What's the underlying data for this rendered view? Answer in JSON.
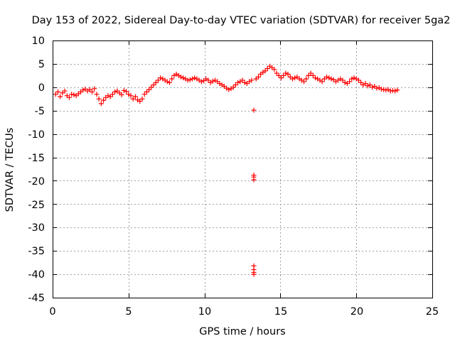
{
  "chart_data": {
    "type": "scatter",
    "title": "Day 153 of 2022, Sidereal Day-to-day VTEC variation (SDTVAR) for receiver 5ga2",
    "xlabel": "GPS time / hours",
    "ylabel": "SDTVAR / TECUs",
    "xlim": [
      0,
      25
    ],
    "ylim": [
      -45,
      10
    ],
    "xticks": [
      "0",
      "5",
      "10",
      "15",
      "20",
      "25"
    ],
    "yticks": [
      "10",
      "5",
      "0",
      "-5",
      "-10",
      "-15",
      "-20",
      "-25",
      "-30",
      "-35",
      "-40",
      "-45"
    ],
    "grid": true,
    "marker": "plus",
    "series": [
      {
        "name": "SDTVAR",
        "color": "#ff0000",
        "x": [
          0.2,
          0.35,
          0.5,
          0.65,
          0.8,
          0.95,
          1.1,
          1.25,
          1.4,
          1.55,
          1.7,
          1.85,
          2.0,
          2.15,
          2.3,
          2.45,
          2.6,
          2.75,
          2.9,
          3.05,
          3.2,
          3.35,
          3.5,
          3.65,
          3.8,
          3.95,
          4.1,
          4.25,
          4.4,
          4.55,
          4.7,
          4.85,
          5.0,
          5.15,
          5.3,
          5.45,
          5.6,
          5.75,
          5.9,
          6.05,
          6.2,
          6.35,
          6.5,
          6.65,
          6.8,
          6.95,
          7.1,
          7.25,
          7.4,
          7.55,
          7.7,
          7.85,
          8.0,
          8.15,
          8.3,
          8.45,
          8.6,
          8.75,
          8.9,
          9.05,
          9.2,
          9.35,
          9.5,
          9.65,
          9.8,
          9.95,
          10.1,
          10.25,
          10.4,
          10.55,
          10.7,
          10.85,
          11.0,
          11.15,
          11.3,
          11.45,
          11.6,
          11.75,
          11.9,
          12.05,
          12.2,
          12.35,
          12.5,
          12.65,
          12.8,
          12.95,
          13.1,
          13.25,
          13.25,
          13.25,
          13.25,
          13.25,
          13.25,
          13.25,
          13.25,
          13.4,
          13.55,
          13.7,
          13.85,
          14.0,
          14.15,
          14.3,
          14.45,
          14.6,
          14.75,
          14.9,
          15.05,
          15.2,
          15.35,
          15.5,
          15.65,
          15.8,
          15.95,
          16.1,
          16.25,
          16.4,
          16.55,
          16.7,
          16.85,
          17.0,
          17.15,
          17.3,
          17.45,
          17.6,
          17.75,
          17.9,
          18.05,
          18.2,
          18.35,
          18.5,
          18.65,
          18.8,
          18.95,
          19.1,
          19.25,
          19.4,
          19.55,
          19.7,
          19.85,
          20.0,
          20.15,
          20.3,
          20.45,
          20.6,
          20.75,
          20.9,
          21.05,
          21.2,
          21.35,
          21.5,
          21.65,
          21.8,
          21.95,
          22.1,
          22.25,
          22.4,
          22.55,
          22.7
        ],
        "y": [
          -1.5,
          -1.0,
          -2.0,
          -1.2,
          -0.8,
          -1.8,
          -2.2,
          -1.5,
          -1.6,
          -1.8,
          -1.4,
          -1.0,
          -0.6,
          -0.4,
          -0.8,
          -0.5,
          -1.0,
          -0.3,
          -1.5,
          -2.5,
          -3.5,
          -2.8,
          -2.2,
          -1.8,
          -2.0,
          -1.5,
          -1.0,
          -0.8,
          -1.2,
          -1.6,
          -0.7,
          -0.9,
          -1.5,
          -1.8,
          -2.5,
          -2.0,
          -2.7,
          -3.0,
          -2.5,
          -1.5,
          -1.0,
          -0.5,
          0.0,
          0.5,
          1.0,
          1.5,
          2.0,
          1.8,
          1.5,
          1.2,
          1.0,
          1.8,
          2.5,
          2.8,
          2.5,
          2.2,
          2.0,
          1.8,
          1.5,
          1.6,
          1.8,
          2.0,
          1.8,
          1.5,
          1.2,
          1.4,
          1.8,
          1.5,
          1.0,
          1.3,
          1.5,
          1.2,
          0.8,
          0.5,
          0.2,
          -0.2,
          -0.5,
          -0.3,
          0.0,
          0.5,
          1.0,
          1.2,
          1.5,
          1.0,
          0.8,
          1.2,
          1.5,
          -4.9,
          -18.8,
          -19.2,
          -19.8,
          -38.2,
          -39.0,
          -39.6,
          -40.0,
          1.8,
          2.2,
          2.8,
          3.2,
          3.5,
          4.0,
          4.5,
          4.2,
          3.8,
          3.0,
          2.5,
          2.0,
          2.5,
          3.0,
          2.8,
          2.2,
          1.8,
          2.0,
          2.2,
          1.8,
          1.5,
          1.2,
          1.8,
          2.5,
          3.0,
          2.5,
          2.0,
          1.8,
          1.5,
          1.2,
          1.8,
          2.2,
          2.0,
          1.8,
          1.6,
          1.2,
          1.5,
          1.8,
          1.5,
          1.0,
          0.8,
          1.2,
          1.8,
          2.0,
          1.8,
          1.5,
          1.0,
          0.5,
          0.8,
          0.3,
          0.5,
          0.0,
          0.2,
          -0.2,
          -0.1,
          -0.4,
          -0.5,
          -0.6,
          -0.5,
          -0.8,
          -0.7,
          -0.8,
          -0.6
        ]
      }
    ]
  }
}
